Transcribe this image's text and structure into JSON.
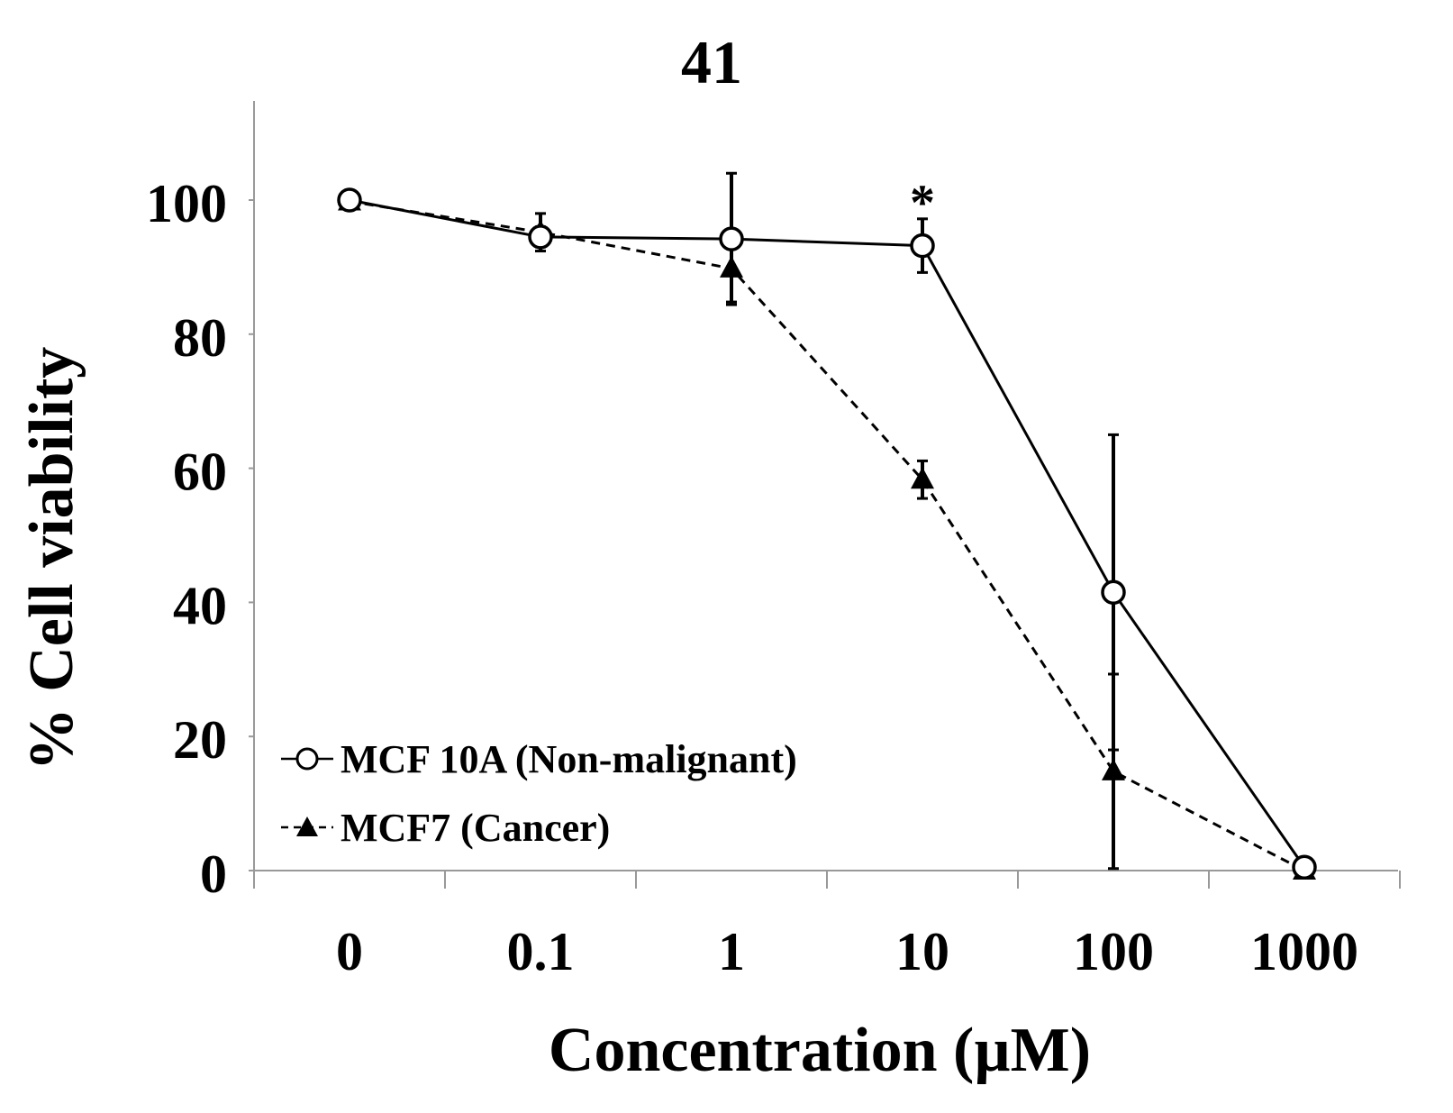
{
  "chart_data": {
    "type": "line",
    "title": "41",
    "xlabel": "Concentration (µM)",
    "ylabel": "% Cell viability",
    "categories": [
      "0",
      "0.1",
      "1",
      "10",
      "100",
      "1000"
    ],
    "ylim": [
      0,
      100
    ],
    "yticks": [
      0,
      20,
      40,
      60,
      80,
      100
    ],
    "ytick_labels": [
      "0",
      "20",
      "40",
      "60",
      "80",
      "100"
    ],
    "grid": false,
    "legend_position": "bottom-left",
    "series": [
      {
        "name": "MCF 10A (Non-malignant)",
        "legend_label": "MCF 10A (Non-malignant)",
        "marker": "open-circle",
        "line_style": "solid",
        "values": [
          100,
          94.5,
          94.2,
          93.2,
          41.5,
          0.5
        ],
        "errors": [
          0.5,
          1.5,
          9.8,
          4.0,
          23.5,
          0.5
        ]
      },
      {
        "name": "MCF7 (Cancer)",
        "legend_label": "MCF7 (Cancer)",
        "marker": "filled-triangle",
        "line_style": "dashed",
        "values": [
          99.8,
          95.2,
          89.8,
          58.3,
          14.8,
          0
        ],
        "errors": [
          0.5,
          2.8,
          5.0,
          2.8,
          14.5,
          0.5
        ]
      }
    ],
    "annotations": [
      {
        "text": "*",
        "category": "10",
        "value": 103
      }
    ]
  },
  "colors": {
    "line": "#000000",
    "background": "#ffffff"
  }
}
